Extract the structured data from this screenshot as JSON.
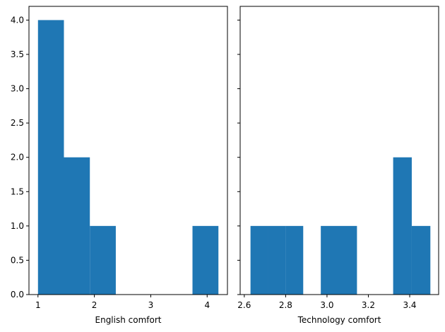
{
  "chart_data": [
    {
      "type": "bar",
      "xlabel": "English comfort",
      "ylabel": "",
      "xlim": [
        0.84,
        4.36
      ],
      "ylim": [
        0,
        4.2
      ],
      "xticks": [
        "1",
        "2",
        "3",
        "4"
      ],
      "yticks": [
        "0.0",
        "0.5",
        "1.0",
        "1.5",
        "2.0",
        "2.5",
        "3.0",
        "3.5",
        "4.0"
      ],
      "bins": [
        {
          "start": 1.0,
          "end": 1.46,
          "count": 4
        },
        {
          "start": 1.46,
          "end": 1.92,
          "count": 2
        },
        {
          "start": 1.92,
          "end": 2.38,
          "count": 1
        },
        {
          "start": 2.38,
          "end": 2.84,
          "count": 0
        },
        {
          "start": 2.84,
          "end": 3.3,
          "count": 0
        },
        {
          "start": 3.3,
          "end": 3.74,
          "count": 0
        },
        {
          "start": 3.74,
          "end": 4.2,
          "count": 1
        }
      ],
      "color": "#1f77b4"
    },
    {
      "type": "bar",
      "xlabel": "Technology comfort",
      "ylabel": "",
      "xlim": [
        2.58,
        3.54
      ],
      "ylim": [
        0,
        4.2
      ],
      "xticks": [
        "2.6",
        "2.8",
        "3.0",
        "3.2",
        "3.4"
      ],
      "yticks": [
        "0.0",
        "0.5",
        "1.0",
        "1.5",
        "2.0",
        "2.5",
        "3.0",
        "3.5",
        "4.0"
      ],
      "bins": [
        {
          "start": 2.63,
          "end": 2.715,
          "count": 1
        },
        {
          "start": 2.715,
          "end": 2.8,
          "count": 1
        },
        {
          "start": 2.8,
          "end": 2.885,
          "count": 1
        },
        {
          "start": 2.885,
          "end": 2.97,
          "count": 0
        },
        {
          "start": 2.97,
          "end": 3.06,
          "count": 1
        },
        {
          "start": 3.06,
          "end": 3.145,
          "count": 1
        },
        {
          "start": 3.145,
          "end": 3.23,
          "count": 0
        },
        {
          "start": 3.23,
          "end": 3.32,
          "count": 0
        },
        {
          "start": 3.32,
          "end": 3.41,
          "count": 2
        },
        {
          "start": 3.41,
          "end": 3.5,
          "count": 1
        }
      ],
      "color": "#1f77b4"
    }
  ]
}
